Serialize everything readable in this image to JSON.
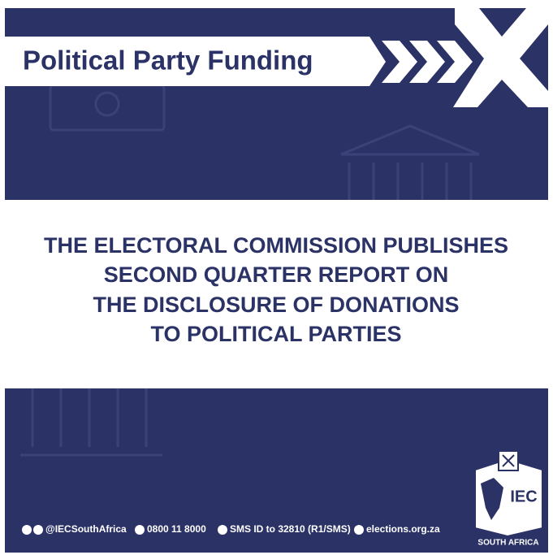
{
  "banner": {
    "title": "Political Party Funding"
  },
  "headline": {
    "lines": [
      "THE ELECTORAL COMMISSION PUBLISHES",
      "SECOND QUARTER REPORT ON",
      "THE DISCLOSURE OF DONATIONS",
      "TO POLITICAL PARTIES"
    ]
  },
  "footer": {
    "contacts": [
      "@IECSouthAfrica",
      "0800 11 8000",
      "SMS ID to 32810 (R1/SMS)",
      "elections.org.za"
    ]
  },
  "logo": {
    "text": "IEC",
    "caption": "SOUTH AFRICA"
  }
}
